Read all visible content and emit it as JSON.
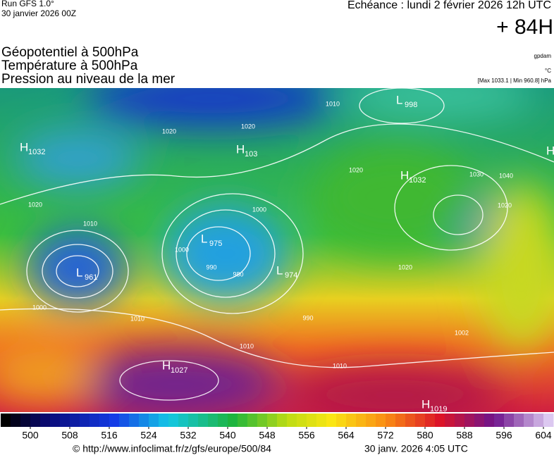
{
  "header": {
    "run": "Run GFS 1.0°",
    "run_date": "30 janvier 2026 00Z",
    "echeance": "Echéance : lundi 2 février 2026 12h UTC",
    "lead": "+ 84H"
  },
  "titles": [
    "Géopotentiel à 500hPa",
    "Température à 500hPa",
    "Pression au niveau de la mer"
  ],
  "units": {
    "geopotential": "gpdam",
    "temperature": "°C",
    "pressure": "[Max 1033.1 | Min 960.8] hPa"
  },
  "centers": [
    {
      "type": "H",
      "value": "1032"
    },
    {
      "type": "L",
      "value": "998"
    },
    {
      "type": "H",
      "value": "103"
    },
    {
      "type": "H",
      "value": null
    },
    {
      "type": "H",
      "value": "1032"
    },
    {
      "type": "L",
      "value": "975"
    },
    {
      "type": "L",
      "value": "974"
    },
    {
      "type": "L",
      "value": "961"
    },
    {
      "type": "H",
      "value": "1027"
    },
    {
      "type": "H",
      "value": "1019"
    }
  ],
  "isobar_labels": [
    "1010",
    "1020",
    "1020",
    "1010",
    "1000",
    "1030",
    "1040",
    "1020",
    "1020",
    "1000",
    "1010",
    "1010",
    "990",
    "1010",
    "1002",
    "1020",
    "990",
    "980",
    "1020",
    "1000"
  ],
  "colorbar": {
    "lim": [
      494,
      606
    ],
    "ticks": [
      500,
      508,
      516,
      524,
      532,
      540,
      548,
      556,
      564,
      572,
      580,
      588,
      596,
      604
    ]
  },
  "footer": {
    "source": "© http://www.infoclimat.fr/z/gfs/europe/500/84",
    "generated": "30 janv. 2026  4:05 UTC"
  }
}
